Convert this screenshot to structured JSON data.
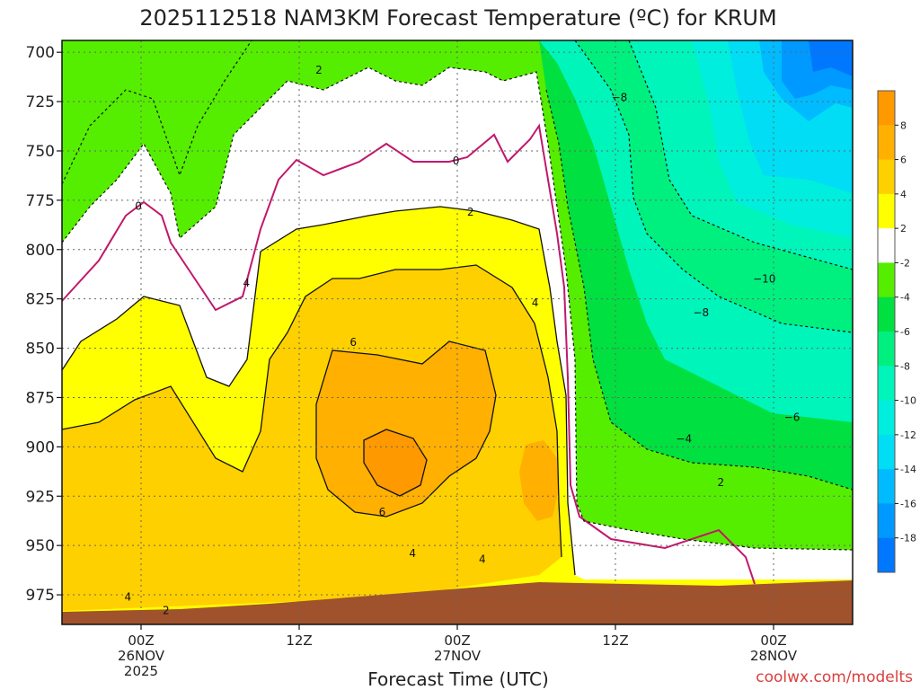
{
  "chart_data": {
    "type": "heatmap",
    "title": "2025112518 NAM3KM Forecast Temperature (ºC) for KRUM",
    "xlabel": "Forecast Time (UTC)",
    "ylabel": "",
    "credit": "coolwx.com/modelts",
    "y_axis": {
      "ticks": [
        700,
        725,
        750,
        775,
        800,
        825,
        850,
        875,
        900,
        925,
        950,
        975
      ],
      "range": [
        990,
        694
      ],
      "unit": "hPa (pressure, inverted)"
    },
    "x_axis": {
      "range_hours": [
        -6,
        54
      ],
      "ticks": [
        {
          "hour": 0,
          "lines": [
            "00Z",
            "26NOV",
            "2025"
          ]
        },
        {
          "hour": 12,
          "lines": [
            "12Z"
          ]
        },
        {
          "hour": 24,
          "lines": [
            "00Z",
            "27NOV"
          ]
        },
        {
          "hour": 36,
          "lines": [
            "12Z"
          ]
        },
        {
          "hour": 48,
          "lines": [
            "00Z",
            "28NOV"
          ]
        }
      ]
    },
    "colorbar": {
      "ticks": [
        8,
        6,
        4,
        2,
        -2,
        -4,
        -6,
        -8,
        -10,
        -12,
        -14,
        -16,
        -18
      ],
      "bins": [
        {
          "from": 8,
          "to": 10,
          "color": "#ff9900"
        },
        {
          "from": 6,
          "to": 8,
          "color": "#ffb000"
        },
        {
          "from": 4,
          "to": 6,
          "color": "#ffd000"
        },
        {
          "from": 2,
          "to": 4,
          "color": "#ffff00"
        },
        {
          "from": -2,
          "to": 2,
          "color": "#ffffff"
        },
        {
          "from": -4,
          "to": -2,
          "color": "#55ee00"
        },
        {
          "from": -6,
          "to": -4,
          "color": "#00e040"
        },
        {
          "from": -8,
          "to": -6,
          "color": "#00f080"
        },
        {
          "from": -10,
          "to": -8,
          "color": "#00f5bb"
        },
        {
          "from": -12,
          "to": -10,
          "color": "#00eedd"
        },
        {
          "from": -14,
          "to": -12,
          "color": "#00ddf5"
        },
        {
          "from": -16,
          "to": -14,
          "color": "#00bbff"
        },
        {
          "from": -18,
          "to": -16,
          "color": "#0099ff"
        },
        {
          "from": -20,
          "to": -18,
          "color": "#0077ff"
        }
      ]
    },
    "contour_labels": [
      {
        "hour": -0.2,
        "p": 778,
        "text": "0"
      },
      {
        "hour": 13.5,
        "p": 709,
        "text": "2"
      },
      {
        "hour": 23.9,
        "p": 755,
        "text": "0"
      },
      {
        "hour": 25.0,
        "p": 781,
        "text": "2"
      },
      {
        "hour": 8.0,
        "p": 817,
        "text": "4"
      },
      {
        "hour": 16.1,
        "p": 847,
        "text": "6"
      },
      {
        "hour": 29.9,
        "p": 827,
        "text": "4"
      },
      {
        "hour": 18.3,
        "p": 933,
        "text": "6"
      },
      {
        "hour": 20.6,
        "p": 954,
        "text": "4"
      },
      {
        "hour": 25.9,
        "p": 957,
        "text": "4"
      },
      {
        "hour": -1.0,
        "p": 976,
        "text": "4"
      },
      {
        "hour": 1.9,
        "p": 983,
        "text": "2"
      },
      {
        "hour": 36.3,
        "p": 723,
        "text": "−8"
      },
      {
        "hour": 47.3,
        "p": 815,
        "text": "−10"
      },
      {
        "hour": 42.5,
        "p": 832,
        "text": "−8"
      },
      {
        "hour": 41.2,
        "p": 896,
        "text": "−4"
      },
      {
        "hour": 49.4,
        "p": 885,
        "text": "−6"
      },
      {
        "hour": 44.0,
        "p": 918,
        "text": "2"
      }
    ],
    "temperature_summary": [
      {
        "region": "warm core max",
        "hour": 19,
        "p": 905,
        "value": 8
      },
      {
        "region": "warm layer",
        "hours": [
          6,
          31
        ],
        "p_range": [
          800,
          975
        ],
        "value": "4 to 6"
      },
      {
        "region": "cold upper right",
        "hour": 52,
        "p": 710,
        "value": -18
      }
    ]
  }
}
